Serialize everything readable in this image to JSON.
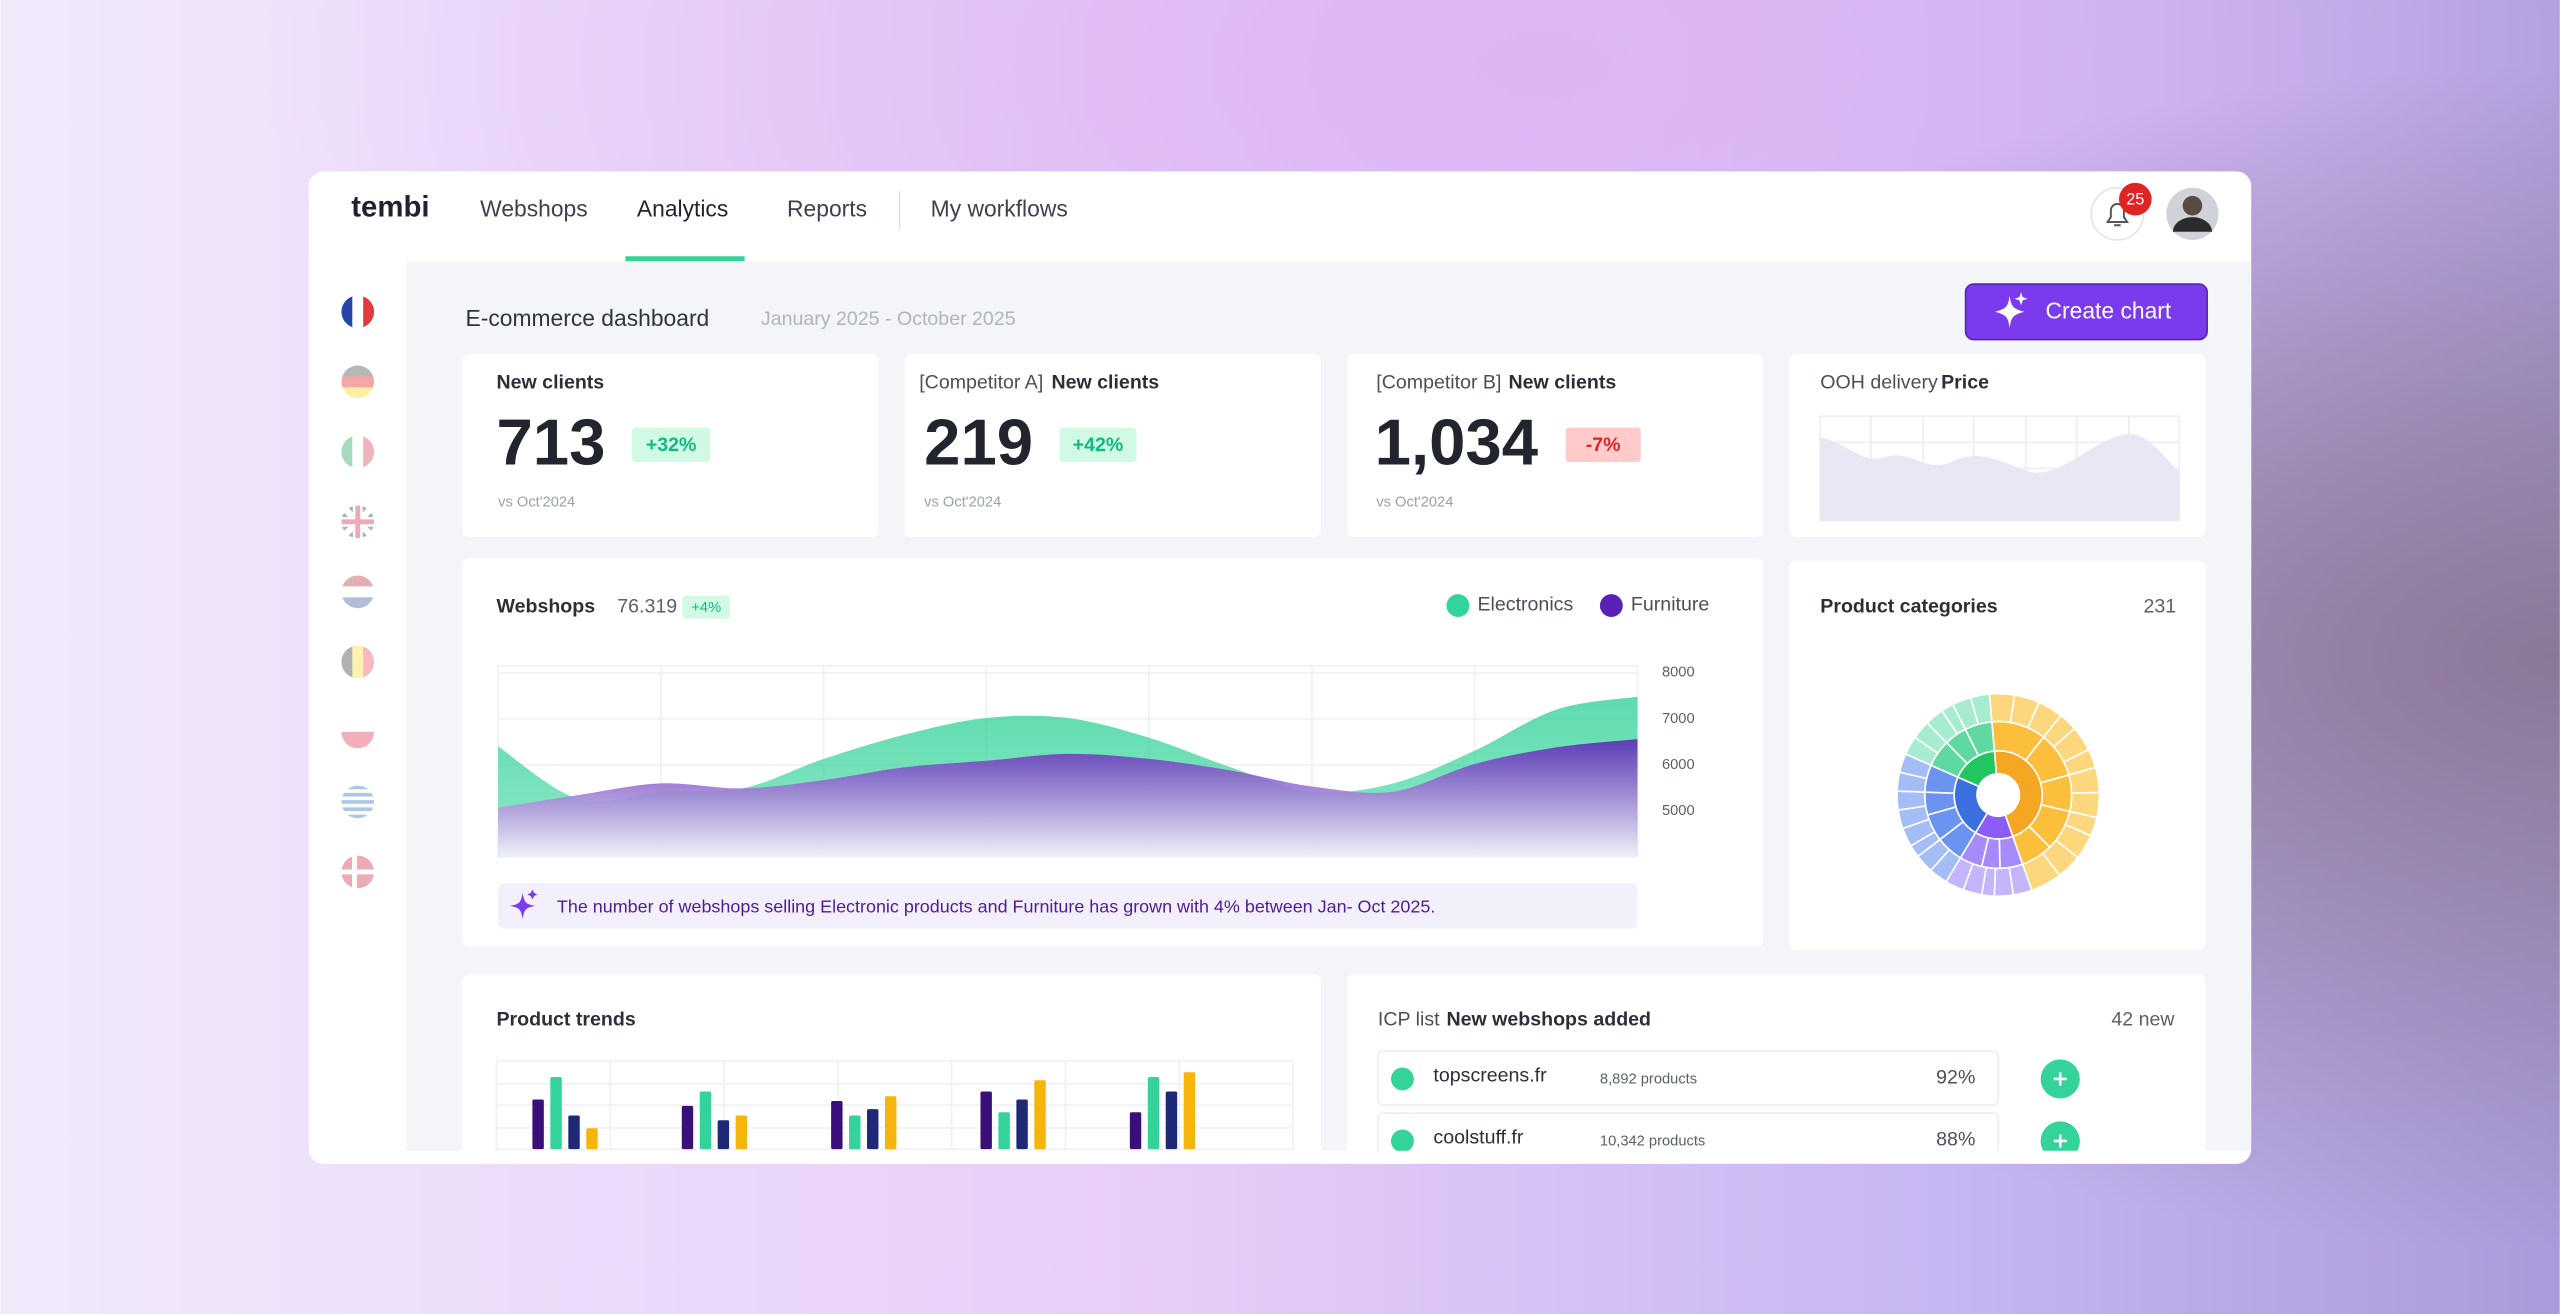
{
  "nav": {
    "logo": "tembi",
    "tabs": [
      "Webshops",
      "Analytics",
      "Reports",
      "My workflows"
    ],
    "notifications": "25"
  },
  "header": {
    "title": "E-commerce dashboard",
    "date_range": "January 2025 - October 2025",
    "button": "Create chart"
  },
  "kpis": [
    {
      "label": "New clients",
      "value": "713",
      "change": "+32%",
      "note": "vs Oct'2024"
    },
    {
      "prefix": "[Competitor A]",
      "label": "New clients",
      "value": "219",
      "change": "+42%",
      "note": "vs Oct'2024"
    },
    {
      "prefix": "[Competitor B]",
      "label": "New clients",
      "value": "1,034",
      "change": "-7%",
      "note": "vs Oct'2024"
    }
  ],
  "ooh": {
    "prefix": "OOH delivery",
    "label": "Price"
  },
  "webshops": {
    "title": "Webshops",
    "total": "76.319",
    "change": "+4%",
    "insight": "The number of webshops selling Electronic products and Furniture has grown with 4% between Jan- Oct 2025.",
    "chart_data": {
      "type": "area",
      "categories": [
        null,
        null,
        null,
        null,
        null,
        null,
        null,
        null,
        null,
        null,
        null,
        null,
        null,
        null,
        null
      ],
      "series": [
        {
          "name": "Electronics",
          "color": "#34d399",
          "values": [
            6400,
            5250,
            5420,
            5490,
            6130,
            6660,
            7020,
            7020,
            6590,
            5950,
            5420,
            5600,
            6310,
            7200,
            7480
          ]
        },
        {
          "name": "Furniture",
          "color": "#5b21b6",
          "values": [
            5070,
            5350,
            5600,
            5490,
            5670,
            5950,
            6090,
            6240,
            6130,
            5880,
            5530,
            5420,
            6020,
            6380,
            6560
          ]
        }
      ],
      "ylim": [
        4000,
        8150
      ],
      "yticks": [
        8000,
        7000,
        6000,
        5000
      ],
      "grid": true
    }
  },
  "product_categories": {
    "title": "Product categories",
    "count": "231",
    "chart_data": {
      "type": "sunburst",
      "groups": [
        {
          "colors": [
            "#f5a623",
            "#fbbf3c",
            "#fdd77e"
          ],
          "value": 46,
          "children": [
            12,
            10,
            8,
            9,
            7
          ],
          "leaves": [
            4,
            4,
            4,
            3,
            4,
            3,
            4,
            4,
            3,
            4,
            4,
            5
          ]
        },
        {
          "colors": [
            "#8b5cf6",
            "#a78bfa",
            "#c4b5fd"
          ],
          "value": 14,
          "children": [
            5,
            4,
            5
          ],
          "leaves": [
            3,
            3,
            2,
            3,
            3
          ]
        },
        {
          "colors": [
            "#3b6fe0",
            "#6b93f0",
            "#a5bdf7"
          ],
          "value": 23,
          "children": [
            6,
            6,
            5,
            6
          ],
          "leaves": [
            3,
            3,
            2,
            3,
            3,
            3,
            3,
            3
          ]
        },
        {
          "colors": [
            "#22c55e",
            "#5fd9a0",
            "#a7ecd0"
          ],
          "value": 17,
          "children": [
            6,
            5,
            6
          ],
          "leaves": [
            3,
            3,
            3,
            2,
            3,
            3
          ]
        }
      ]
    }
  },
  "product_trends": {
    "title": "Product trends",
    "chart_data": {
      "type": "bar",
      "categories": [
        null,
        null,
        null,
        null,
        null
      ],
      "series": [
        {
          "color": "#3b0f7a",
          "values": [
            31,
            27,
            30,
            36,
            23
          ]
        },
        {
          "color": "#34d399",
          "values": [
            45,
            36,
            21,
            23,
            45
          ]
        },
        {
          "color": "#1e2a78",
          "values": [
            21,
            18,
            25,
            31,
            36
          ]
        },
        {
          "color": "#f5b50a",
          "values": [
            13,
            21,
            33,
            43,
            48
          ]
        }
      ],
      "ylim": [
        0,
        55
      ]
    }
  },
  "icp": {
    "prefix": "ICP list",
    "title": "New webshops added",
    "count": "42 new",
    "rows": [
      {
        "name": "topscreens.fr",
        "products": "8,892 products",
        "share": "92%"
      },
      {
        "name": "coolstuff.fr",
        "products": "10,342 products",
        "share": "88%"
      }
    ]
  }
}
